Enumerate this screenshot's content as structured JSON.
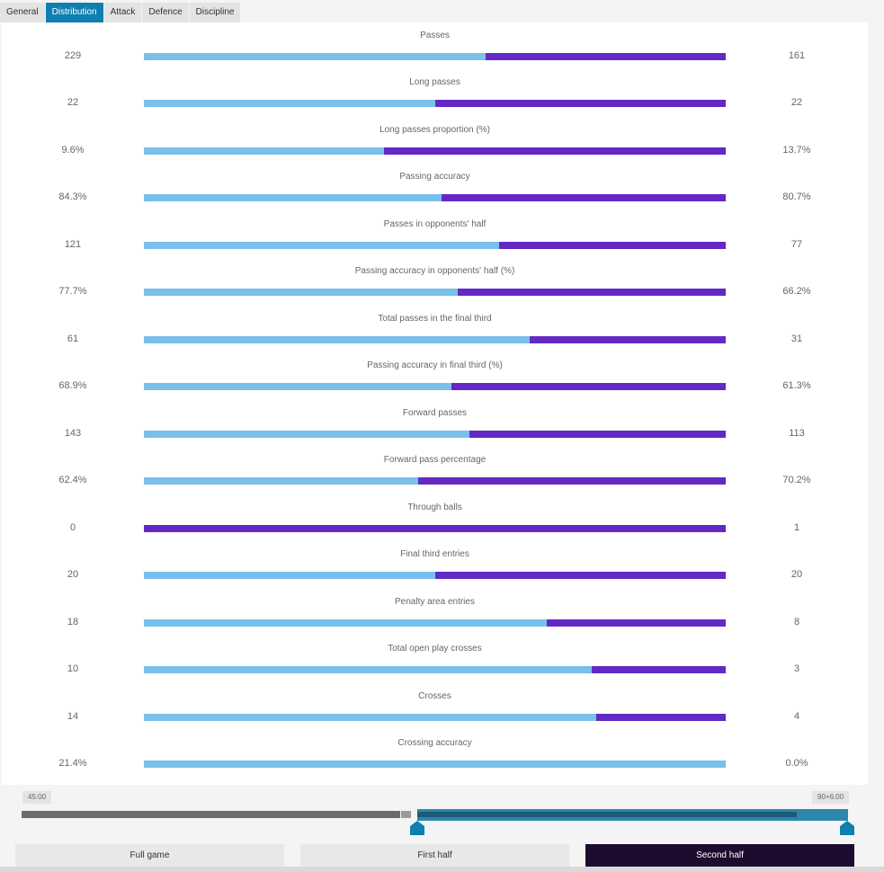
{
  "tabs": [
    {
      "label": "General",
      "active": false
    },
    {
      "label": "Distribution",
      "active": true
    },
    {
      "label": "Attack",
      "active": false
    },
    {
      "label": "Defence",
      "active": false
    },
    {
      "label": "Discipline",
      "active": false
    }
  ],
  "colors": {
    "home": "#79c0ea",
    "away": "#6429c4",
    "tab_active": "#0e7fb0",
    "button_active": "#1e0c2e"
  },
  "stats": [
    {
      "label": "Passes",
      "home": "229",
      "away": "161",
      "share": 0.587
    },
    {
      "label": "Long passes",
      "home": "22",
      "away": "22",
      "share": 0.5
    },
    {
      "label": "Long passes proportion (%)",
      "home": "9.6%",
      "away": "13.7%",
      "share": 0.412
    },
    {
      "label": "Passing accuracy",
      "home": "84.3%",
      "away": "80.7%",
      "share": 0.511
    },
    {
      "label": "Passes in opponents' half",
      "home": "121",
      "away": "77",
      "share": 0.611
    },
    {
      "label": "Passing accuracy in opponents' half (%)",
      "home": "77.7%",
      "away": "66.2%",
      "share": 0.54
    },
    {
      "label": "Total passes in the final third",
      "home": "61",
      "away": "31",
      "share": 0.663
    },
    {
      "label": "Passing accuracy in final third (%)",
      "home": "68.9%",
      "away": "61.3%",
      "share": 0.529
    },
    {
      "label": "Forward passes",
      "home": "143",
      "away": "113",
      "share": 0.559
    },
    {
      "label": "Forward pass percentage",
      "home": "62.4%",
      "away": "70.2%",
      "share": 0.471
    },
    {
      "label": "Through balls",
      "home": "0",
      "away": "1",
      "share": 0.0
    },
    {
      "label": "Final third entries",
      "home": "20",
      "away": "20",
      "share": 0.5
    },
    {
      "label": "Penalty area entries",
      "home": "18",
      "away": "8",
      "share": 0.692
    },
    {
      "label": "Total open play crosses",
      "home": "10",
      "away": "3",
      "share": 0.769
    },
    {
      "label": "Crosses",
      "home": "14",
      "away": "4",
      "share": 0.778
    },
    {
      "label": "Crossing accuracy",
      "home": "21.4%",
      "away": "0.0%",
      "share": 1.0
    }
  ],
  "timeline": {
    "start_label": "45:00",
    "end_label": "90+6:00"
  },
  "periods": [
    {
      "label": "Full game",
      "active": false
    },
    {
      "label": "First half",
      "active": false
    },
    {
      "label": "Second half",
      "active": true
    }
  ]
}
